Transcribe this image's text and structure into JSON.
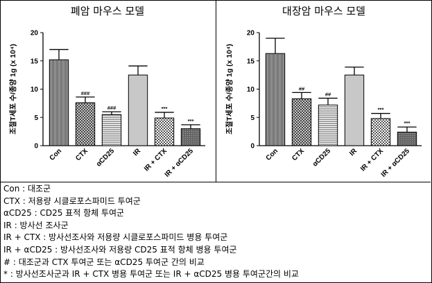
{
  "panels": [
    {
      "title": "폐암 마우스 모델"
    },
    {
      "title": "대장암 마우스 모델"
    }
  ],
  "legend_lines": [
    "Con : 대조군",
    "CTX : 저용량 시클로포스파미드 투여군",
    "αCD25 : CD25 표적 항체 투여군",
    "IR : 방사선 조사군",
    "IR + CTX : 방사선조사와 저용량 시클로포스파미드 병용 투여군",
    "IR + αCD25 : 방사선조사와 저용량 CD25 표적 항체 병용 투여군",
    "# : 대조군과 CTX 투여군 또는 αCD25 투여군 간의 비교",
    "* : 방사선조사군과 IR + CTX 병용 투여군 또는 IR + αCD25 병용 투여군간의 비교"
  ],
  "chart_data": [
    {
      "type": "bar",
      "title": "폐암 마우스 모델",
      "ylabel": "조절T세포 수/종양 1g (x 10⁴)",
      "ylim": [
        0,
        20
      ],
      "yticks": [
        "0",
        "5",
        "10",
        "15",
        "20"
      ],
      "categories": [
        "Con",
        "CTX",
        "αCD25",
        "IR",
        "IR + CTX",
        "IR + αCD25"
      ],
      "values": [
        15.2,
        7.6,
        5.5,
        12.5,
        4.9,
        3.0
      ],
      "errors": [
        1.8,
        1.0,
        0.5,
        1.6,
        1.0,
        0.7
      ],
      "annotations": [
        "",
        "###",
        "###",
        "",
        "***",
        "***"
      ]
    },
    {
      "type": "bar",
      "title": "대장암 마우스 모델",
      "ylabel": "조절T세포 수/종양 1g (x 10⁴)",
      "ylim": [
        0,
        20
      ],
      "yticks": [
        "0",
        "5",
        "10",
        "15",
        "20"
      ],
      "categories": [
        "Con",
        "CTX",
        "αCD25",
        "IR",
        "IR + CTX",
        "IR + αCD25"
      ],
      "values": [
        16.3,
        8.3,
        7.2,
        12.5,
        4.8,
        2.4
      ],
      "errors": [
        2.7,
        1.1,
        1.2,
        1.4,
        0.9,
        0.9
      ],
      "annotations": [
        "",
        "##",
        "##",
        "",
        "***",
        "***"
      ]
    }
  ]
}
